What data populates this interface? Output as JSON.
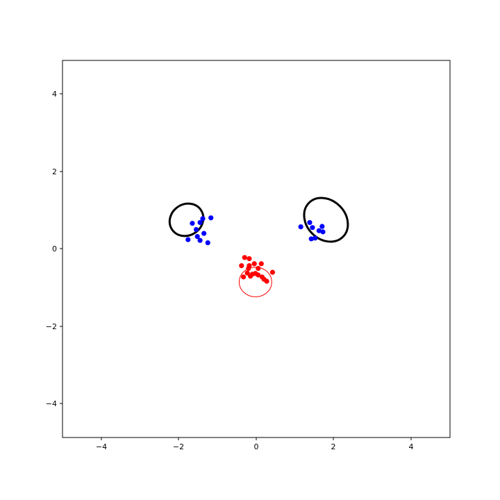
{
  "chart_data": {
    "type": "scatter",
    "xlim": [
      -5,
      5
    ],
    "ylim": [
      -4.85,
      4.85
    ],
    "xticks": [
      -4,
      -2,
      0,
      2,
      4
    ],
    "yticks": [
      -4,
      -2,
      0,
      2,
      4
    ],
    "xtick_labels": [
      "−4",
      "−2",
      "0",
      "2",
      "4"
    ],
    "ytick_labels": [
      "−4",
      "−2",
      "0",
      "2",
      "4"
    ],
    "grid": false,
    "series": [
      {
        "marker_color": "#0000ff",
        "points": [
          [
            -1.65,
            0.66
          ],
          [
            -1.55,
            0.5
          ],
          [
            -1.45,
            0.68
          ],
          [
            -1.38,
            0.78
          ],
          [
            -1.17,
            0.8
          ],
          [
            -1.35,
            0.4
          ],
          [
            -1.52,
            0.32
          ],
          [
            -1.45,
            0.22
          ],
          [
            -1.25,
            0.16
          ],
          [
            -1.76,
            0.24
          ],
          [
            1.15,
            0.57
          ],
          [
            1.38,
            0.68
          ],
          [
            1.45,
            0.55
          ],
          [
            1.7,
            0.58
          ],
          [
            1.72,
            0.44
          ],
          [
            1.62,
            0.47
          ],
          [
            1.52,
            0.28
          ],
          [
            1.42,
            0.26
          ]
        ]
      },
      {
        "marker_color": "#ff0000",
        "points": [
          [
            -0.3,
            -0.22
          ],
          [
            -0.18,
            -0.25
          ],
          [
            -0.38,
            -0.43
          ],
          [
            -0.18,
            -0.43
          ],
          [
            -0.05,
            -0.38
          ],
          [
            0.13,
            -0.38
          ],
          [
            -0.2,
            -0.5
          ],
          [
            0.05,
            -0.5
          ],
          [
            -0.23,
            -0.62
          ],
          [
            -0.1,
            -0.65
          ],
          [
            -0.02,
            -0.63
          ],
          [
            0.05,
            -0.67
          ],
          [
            -0.15,
            -0.7
          ],
          [
            -0.33,
            -0.72
          ],
          [
            0.15,
            -0.72
          ],
          [
            0.2,
            -0.78
          ],
          [
            0.27,
            -0.83
          ],
          [
            0.42,
            -0.6
          ]
        ]
      }
    ],
    "ellipses": [
      {
        "cx": -1.8,
        "cy": 0.75,
        "rx": 0.45,
        "ry": 0.4,
        "angle": 35,
        "color": "#000000",
        "width": 3
      },
      {
        "cx": 1.8,
        "cy": 0.75,
        "rx": 0.62,
        "ry": 0.5,
        "angle": -45,
        "color": "#000000",
        "width": 3
      },
      {
        "cx": -0.02,
        "cy": -0.85,
        "rx": 0.42,
        "ry": 0.38,
        "angle": 0,
        "color": "#ff0000",
        "width": 1
      }
    ]
  }
}
